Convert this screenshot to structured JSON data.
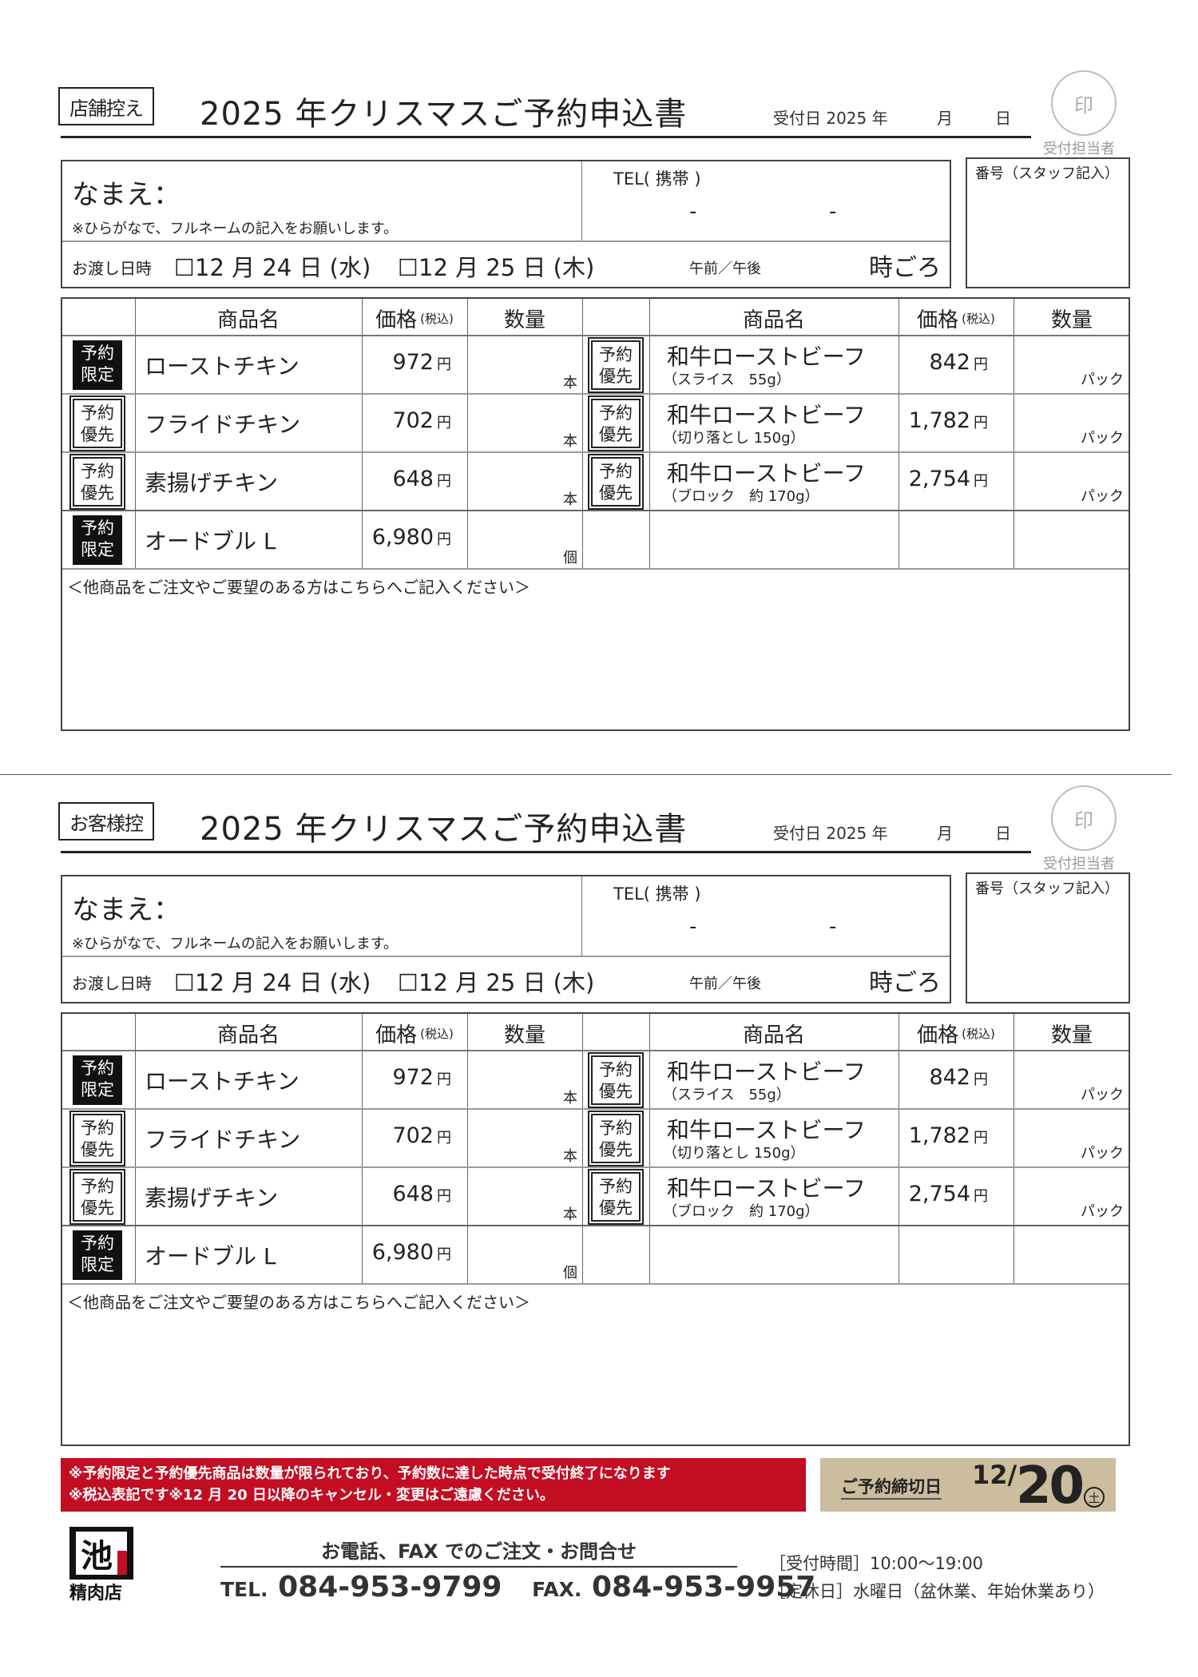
{
  "sections": [
    {
      "copy_label": "店舗控え"
    },
    {
      "copy_label": "お客様控"
    }
  ],
  "form": {
    "title": "2025 年クリスマスご予約申込書",
    "received_label": "受付日 2025 年",
    "month": "月",
    "day": "日",
    "stamp": "印",
    "stamp_caption": "受付担当者",
    "name_label": "なまえ：",
    "name_note": "※ひらがなで、フルネームの記入をお願いします。",
    "tel_label": "TEL( 携帯 )",
    "tel_sep": "-",
    "staff_number_label": "番号（スタッフ記入）",
    "delivery_label": "お渡し日時",
    "date_options": [
      "☐12 月 24 日 (水)",
      "☐12 月 25 日 (木)"
    ],
    "ampm": "午前／午後",
    "time_suffix": "時ごろ",
    "headers": {
      "name": "商品名",
      "price": "価格",
      "tax": "(税込)",
      "qty": "数量"
    },
    "yen": "円",
    "left_items": [
      {
        "badge": [
          "予約",
          "限定"
        ],
        "badge_type": "limited",
        "name": "ローストチキン",
        "price": "972",
        "unit": "本"
      },
      {
        "badge": [
          "予約",
          "優先"
        ],
        "badge_type": "priority",
        "name": "フライドチキン",
        "price": "702",
        "unit": "本"
      },
      {
        "badge": [
          "予約",
          "優先"
        ],
        "badge_type": "priority",
        "name": "素揚げチキン",
        "price": "648",
        "unit": "本"
      },
      {
        "badge": [
          "予約",
          "限定"
        ],
        "badge_type": "limited",
        "name": "オードブル L",
        "price": "6,980",
        "unit": "個"
      }
    ],
    "right_items": [
      {
        "badge": [
          "予約",
          "優先"
        ],
        "badge_type": "priority",
        "name": "和牛ローストビーフ",
        "sub": "（スライス　55g）",
        "price": "842",
        "unit": "パック"
      },
      {
        "badge": [
          "予約",
          "優先"
        ],
        "badge_type": "priority",
        "name": "和牛ローストビーフ",
        "sub": "（切り落とし 150g）",
        "price": "1,782",
        "unit": "パック"
      },
      {
        "badge": [
          "予約",
          "優先"
        ],
        "badge_type": "priority",
        "name": "和牛ローストビーフ",
        "sub": "（ブロック　約 170g）",
        "price": "2,754",
        "unit": "パック"
      }
    ],
    "notes_prompt": "＜他商品をご注文やご要望のある方はこちらへご記入ください＞"
  },
  "footer": {
    "notice_lines": [
      "※予約限定と予約優先商品は数量が限られており、予約数に達した時点で受付終了になります",
      "※税込表記です※12 月 20 日以降のキャンセル・変更はご遠慮ください。"
    ],
    "deadline_label": "ご予約締切日",
    "deadline_month": "12/",
    "deadline_day": "20",
    "deadline_weekday": "土",
    "logo_text": "池田精肉店",
    "contact_heading": "お電話、FAX でのご注文・お問合せ",
    "tel_prefix": "TEL.",
    "tel": "084-953-9799",
    "fax_prefix": "FAX.",
    "fax": "084-953-9957",
    "hours": "［受付時間］10:00〜19:00",
    "closed": "［定休日］水曜日（盆休業、年始休業あり）"
  },
  "colors": {
    "notice_red": "#c30d23",
    "deadline_beige": "#cbbd9d"
  }
}
